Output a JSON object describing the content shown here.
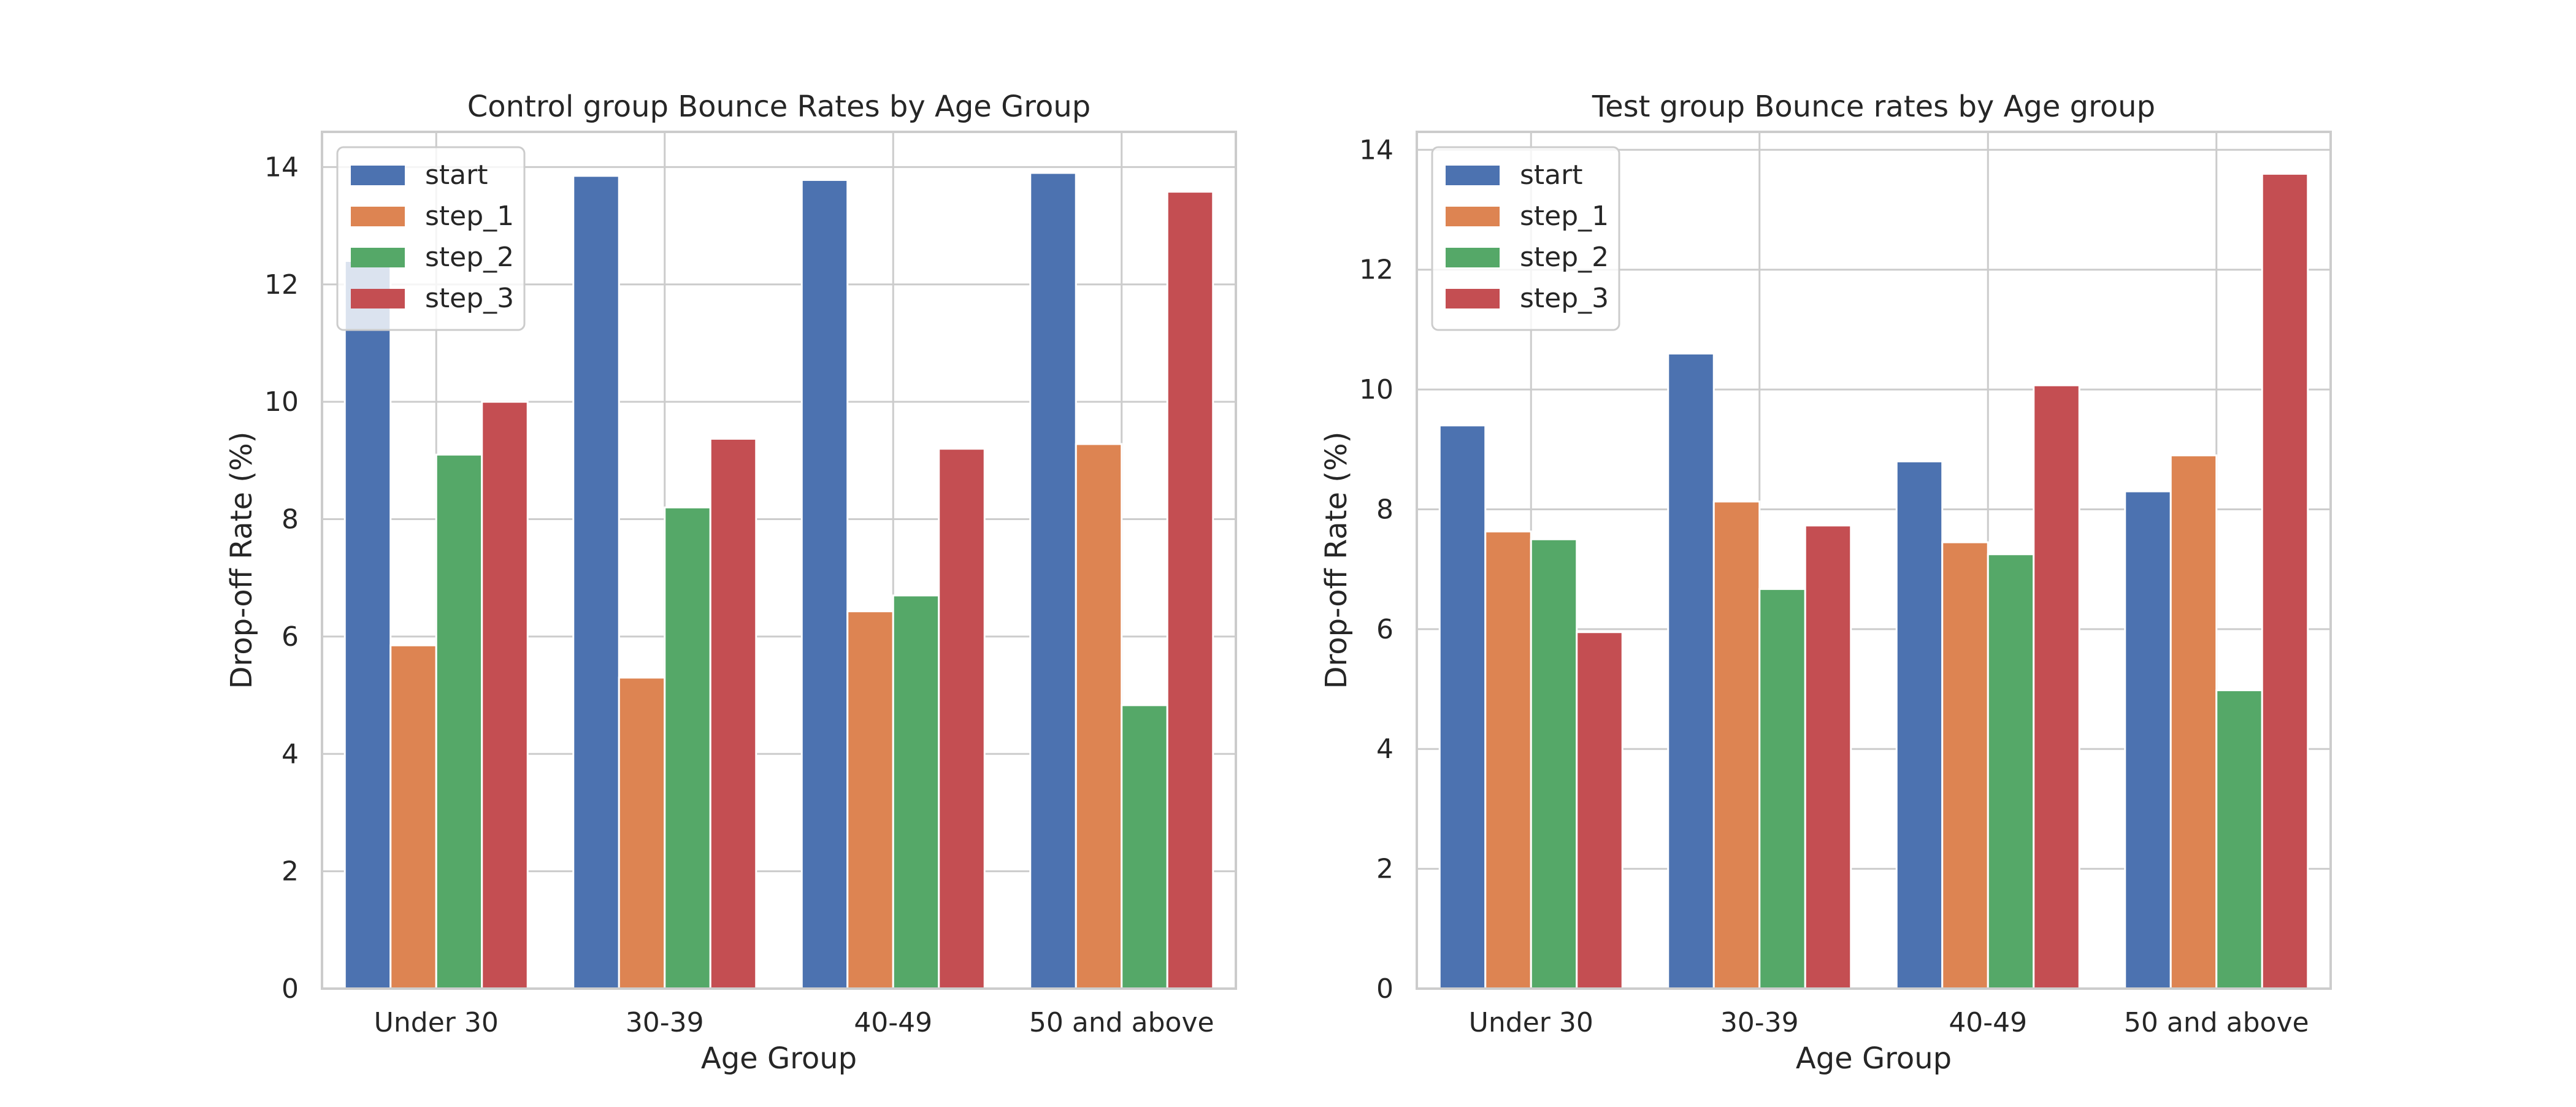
{
  "chart_data": [
    {
      "type": "bar",
      "title": "Control group Bounce Rates by Age Group",
      "xlabel": "Age Group",
      "ylabel": "Drop-off Rate (%)",
      "categories": [
        "Under 30",
        "30-39",
        "40-49",
        "50 and above"
      ],
      "ylim": [
        0,
        14.6
      ],
      "yticks": [
        0,
        2,
        4,
        6,
        8,
        10,
        12,
        14
      ],
      "grid": true,
      "legend_position": "upper-left",
      "series": [
        {
          "name": "start",
          "color": "#4c72b0",
          "values": [
            12.4,
            13.85,
            13.78,
            13.9
          ]
        },
        {
          "name": "step_1",
          "color": "#dd8452",
          "values": [
            5.85,
            5.3,
            6.43,
            9.28
          ]
        },
        {
          "name": "step_2",
          "color": "#55a868",
          "values": [
            9.1,
            8.2,
            6.7,
            4.83
          ]
        },
        {
          "name": "step_3",
          "color": "#c44e52",
          "values": [
            10.0,
            9.37,
            9.2,
            13.58
          ]
        }
      ]
    },
    {
      "type": "bar",
      "title": "Test group Bounce rates by Age group",
      "xlabel": "Age Group",
      "ylabel": "Drop-off Rate (%)",
      "categories": [
        "Under 30",
        "30-39",
        "40-49",
        "50 and above"
      ],
      "ylim": [
        0,
        14.3
      ],
      "yticks": [
        0,
        2,
        4,
        6,
        8,
        10,
        12,
        14
      ],
      "grid": true,
      "legend_position": "upper-left",
      "series": [
        {
          "name": "start",
          "color": "#4c72b0",
          "values": [
            9.4,
            10.6,
            8.8,
            8.3
          ]
        },
        {
          "name": "step_1",
          "color": "#dd8452",
          "values": [
            7.63,
            8.13,
            7.45,
            8.9
          ]
        },
        {
          "name": "step_2",
          "color": "#55a868",
          "values": [
            7.5,
            6.67,
            7.25,
            4.98
          ]
        },
        {
          "name": "step_3",
          "color": "#c44e52",
          "values": [
            5.95,
            7.73,
            10.07,
            13.6
          ]
        }
      ]
    }
  ]
}
